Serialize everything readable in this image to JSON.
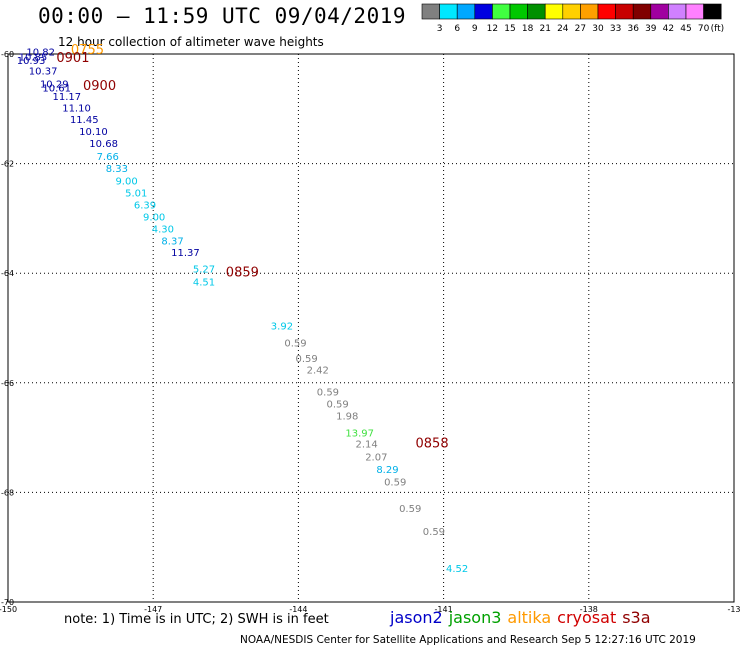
{
  "title": "00:00 – 11:59 UTC 09/04/2019",
  "subtitle": "12 hour collection of altimeter wave heights",
  "note": "note: 1) Time is in UTC; 2) SWH is in feet",
  "credit": "NOAA/NESDIS Center for Satellite Applications and Research    Sep  5 12:27:16 UTC 2019",
  "legend": [
    {
      "label": "jason2",
      "color": "#0000c8"
    },
    {
      "label": "jason3",
      "color": "#00a000"
    },
    {
      "label": "altika",
      "color": "#ff9a00"
    },
    {
      "label": "cryosat",
      "color": "#d00000"
    },
    {
      "label": "s3a",
      "color": "#900000"
    }
  ],
  "colorbar": {
    "labels": [
      "3",
      "6",
      "9",
      "12",
      "15",
      "18",
      "21",
      "24",
      "27",
      "30",
      "33",
      "36",
      "39",
      "42",
      "45",
      "70"
    ],
    "unit": "(ft)",
    "colors": [
      "#808080",
      "#00e8ff",
      "#00a8ff",
      "#0000e0",
      "#40ff40",
      "#00c800",
      "#009000",
      "#ffff00",
      "#ffd000",
      "#ffa000",
      "#ff0000",
      "#c80000",
      "#800000",
      "#a000a0",
      "#d080ff",
      "#ff80ff",
      "#000000"
    ]
  },
  "chart_data": {
    "type": "scatter",
    "xlim": [
      -150,
      -135
    ],
    "ylim": [
      -70,
      -60
    ],
    "x_ticks": [
      "-150",
      "-147",
      "-144",
      "-141",
      "-138",
      "-13"
    ],
    "y_ticks": [
      "-60",
      "-62",
      "-64",
      "-66",
      "-68",
      "-70"
    ],
    "grid": true,
    "points": [
      {
        "lon": -149.62,
        "lat": -60.03,
        "value": "10.82",
        "color": "#0000a0"
      },
      {
        "lon": -149.78,
        "lat": -60.12,
        "value": "10.85",
        "color": "#0000a0"
      },
      {
        "lon": -149.82,
        "lat": -60.18,
        "value": "10.93",
        "color": "#0000a0"
      },
      {
        "lon": -149.57,
        "lat": -60.37,
        "value": "10.37",
        "color": "#0000a0"
      },
      {
        "lon": -149.34,
        "lat": -60.61,
        "value": "10.29",
        "color": "#0000a0"
      },
      {
        "lon": -149.29,
        "lat": -60.68,
        "value": "10.61",
        "color": "#0000a0"
      },
      {
        "lon": -149.08,
        "lat": -60.84,
        "value": "11.17",
        "color": "#0000a0"
      },
      {
        "lon": -148.88,
        "lat": -61.05,
        "value": "11.10",
        "color": "#0000a0"
      },
      {
        "lon": -148.72,
        "lat": -61.26,
        "value": "11.45",
        "color": "#0000a0"
      },
      {
        "lon": -148.53,
        "lat": -61.48,
        "value": "10.10",
        "color": "#0000a0"
      },
      {
        "lon": -148.32,
        "lat": -61.7,
        "value": "10.68",
        "color": "#0000a0"
      },
      {
        "lon": -148.17,
        "lat": -61.93,
        "value": "7.66",
        "color": "#00b0e8"
      },
      {
        "lon": -147.98,
        "lat": -62.15,
        "value": "8.33",
        "color": "#00b0e8"
      },
      {
        "lon": -147.78,
        "lat": -62.38,
        "value": "9.00",
        "color": "#00c8e8"
      },
      {
        "lon": -147.58,
        "lat": -62.6,
        "value": "5.01",
        "color": "#00c8e8"
      },
      {
        "lon": -147.4,
        "lat": -62.82,
        "value": "6.39",
        "color": "#00c8e8"
      },
      {
        "lon": -147.21,
        "lat": -63.04,
        "value": "9.00",
        "color": "#00c8e8"
      },
      {
        "lon": -147.03,
        "lat": -63.26,
        "value": "4.30",
        "color": "#00c8e8"
      },
      {
        "lon": -146.83,
        "lat": -63.48,
        "value": "8.37",
        "color": "#00b0e8"
      },
      {
        "lon": -146.63,
        "lat": -63.69,
        "value": "11.37",
        "color": "#0000a0"
      },
      {
        "lon": -146.18,
        "lat": -63.99,
        "value": "5.27",
        "color": "#00c8e8"
      },
      {
        "lon": -146.18,
        "lat": -64.22,
        "value": "4.51",
        "color": "#00c8e8"
      },
      {
        "lon": -144.57,
        "lat": -65.03,
        "value": "3.92",
        "color": "#00c8e8"
      },
      {
        "lon": -144.29,
        "lat": -65.34,
        "value": "0.59",
        "color": "#808080"
      },
      {
        "lon": -144.06,
        "lat": -65.62,
        "value": "0.59",
        "color": "#808080"
      },
      {
        "lon": -143.83,
        "lat": -65.83,
        "value": "2.42",
        "color": "#808080"
      },
      {
        "lon": -143.62,
        "lat": -66.23,
        "value": "0.59",
        "color": "#808080"
      },
      {
        "lon": -143.42,
        "lat": -66.45,
        "value": "0.59",
        "color": "#808080"
      },
      {
        "lon": -143.22,
        "lat": -66.67,
        "value": "1.98",
        "color": "#808080"
      },
      {
        "lon": -143.03,
        "lat": -66.98,
        "value": "13.97",
        "color": "#40e040"
      },
      {
        "lon": -142.82,
        "lat": -67.18,
        "value": "2.14",
        "color": "#808080"
      },
      {
        "lon": -142.62,
        "lat": -67.42,
        "value": "2.07",
        "color": "#808080"
      },
      {
        "lon": -142.39,
        "lat": -67.65,
        "value": "8.29",
        "color": "#00b0e8"
      },
      {
        "lon": -142.23,
        "lat": -67.87,
        "value": "0.59",
        "color": "#808080"
      },
      {
        "lon": -141.92,
        "lat": -68.36,
        "value": "0.59",
        "color": "#808080"
      },
      {
        "lon": -141.43,
        "lat": -68.78,
        "value": "0.59",
        "color": "#808080"
      },
      {
        "lon": -140.95,
        "lat": -69.45,
        "value": "4.52",
        "color": "#00c8e8"
      }
    ],
    "times": [
      {
        "lon": -148.7,
        "lat": -60.0,
        "label": "0755",
        "color": "#ff9a00"
      },
      {
        "lon": -149.0,
        "lat": -60.15,
        "label": "0901",
        "color": "#900000"
      },
      {
        "lon": -148.45,
        "lat": -60.66,
        "label": "0900",
        "color": "#900000"
      },
      {
        "lon": -145.5,
        "lat": -64.06,
        "label": "0859",
        "color": "#900000"
      },
      {
        "lon": -141.58,
        "lat": -67.18,
        "label": "0858",
        "color": "#900000"
      }
    ]
  }
}
